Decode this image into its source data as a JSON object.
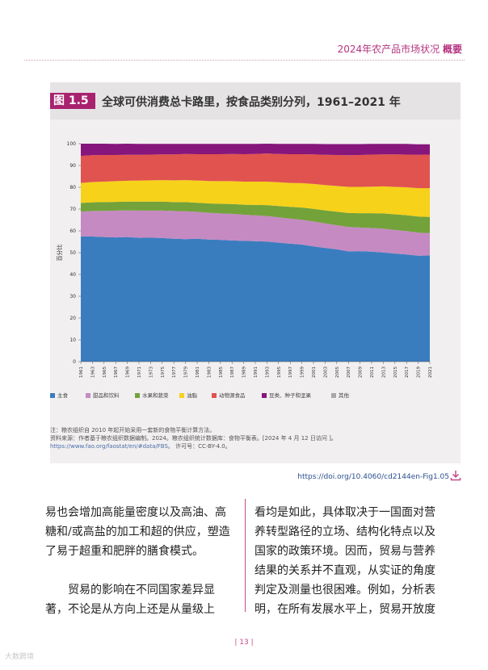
{
  "header": {
    "prefix": "2024年农产品市场状况",
    "bold": "概要"
  },
  "figure": {
    "tag": "图 1.5",
    "title": "全球可供消费总卡路里，按食品类别分列，1961–2021 年"
  },
  "chart_data": {
    "type": "area",
    "stacked": true,
    "ylabel": "百分比",
    "ylim": [
      0,
      100
    ],
    "yticks": [
      0,
      10,
      20,
      30,
      40,
      50,
      60,
      70,
      80,
      90,
      100
    ],
    "x": [
      "1961",
      "1963",
      "1965",
      "1967",
      "1969",
      "1971",
      "1973",
      "1975",
      "1977",
      "1979",
      "1981",
      "1983",
      "1985",
      "1987",
      "1989",
      "1991",
      "1993",
      "1995",
      "1997",
      "1999",
      "2001",
      "2003",
      "2005",
      "2007",
      "2009",
      "2011",
      "2013",
      "2015",
      "2017",
      "2019",
      "2021"
    ],
    "series": [
      {
        "name": "主食",
        "color": "#3a7dbf",
        "values": [
          57.5,
          57.4,
          57.2,
          57.0,
          57.2,
          56.8,
          56.9,
          56.7,
          56.4,
          56.2,
          56.4,
          56.0,
          55.9,
          55.6,
          55.4,
          55.3,
          55.1,
          54.6,
          54.1,
          53.7,
          52.9,
          52.2,
          51.5,
          50.6,
          50.7,
          50.5,
          50.1,
          49.6,
          49.2,
          48.6,
          48.7
        ]
      },
      {
        "name": "甜品和饮料",
        "color": "#c58ac2",
        "values": [
          11.3,
          11.7,
          12.0,
          12.3,
          12.2,
          12.5,
          12.4,
          12.6,
          12.7,
          12.8,
          12.3,
          12.3,
          12.1,
          12.2,
          12.0,
          11.8,
          11.7,
          11.6,
          11.5,
          11.4,
          11.4,
          11.2,
          11.1,
          11.2,
          10.8,
          10.8,
          10.9,
          10.8,
          10.7,
          10.6,
          10.3
        ]
      },
      {
        "name": "水果和蔬菜",
        "color": "#73a23a",
        "values": [
          4.0,
          4.0,
          4.0,
          4.0,
          4.0,
          4.1,
          4.1,
          4.1,
          4.1,
          4.2,
          4.2,
          4.3,
          4.4,
          4.5,
          4.6,
          4.8,
          5.0,
          5.2,
          5.4,
          5.6,
          5.8,
          6.0,
          6.2,
          6.4,
          6.6,
          6.8,
          7.0,
          7.2,
          7.3,
          7.4,
          7.4
        ]
      },
      {
        "name": "油脂",
        "color": "#f6d21b",
        "values": [
          9.2,
          9.3,
          9.4,
          9.5,
          9.6,
          9.7,
          9.8,
          9.9,
          10.0,
          10.1,
          10.2,
          10.3,
          10.4,
          10.5,
          10.6,
          10.7,
          10.8,
          10.9,
          11.0,
          11.2,
          11.4,
          11.6,
          11.8,
          12.0,
          12.1,
          12.2,
          12.4,
          12.6,
          12.8,
          13.0,
          13.2
        ]
      },
      {
        "name": "动物源食品",
        "color": "#e0534f",
        "values": [
          12.4,
          12.3,
          12.2,
          12.0,
          11.9,
          11.8,
          11.8,
          11.8,
          11.9,
          12.0,
          12.1,
          12.3,
          12.4,
          12.5,
          12.6,
          12.7,
          12.9,
          13.0,
          13.2,
          13.3,
          13.6,
          13.9,
          14.2,
          14.5,
          14.6,
          14.7,
          14.7,
          14.9,
          15.0,
          15.3,
          15.4
        ]
      },
      {
        "name": "豆类、种子和坚果",
        "color": "#86167b",
        "values": [
          5.6,
          5.3,
          5.2,
          5.1,
          5.1,
          5.0,
          4.9,
          4.8,
          4.8,
          4.6,
          4.7,
          4.7,
          4.7,
          4.6,
          4.7,
          4.6,
          4.5,
          4.6,
          4.7,
          4.7,
          4.8,
          4.9,
          5.0,
          5.1,
          5.0,
          4.9,
          4.8,
          4.8,
          4.9,
          4.8,
          4.7
        ]
      },
      {
        "name": "其他",
        "color": "#a8a8a8",
        "values": [
          0,
          0,
          0,
          0,
          0,
          0,
          0,
          0,
          0,
          0,
          0,
          0,
          0,
          0,
          0,
          0,
          0,
          0,
          0,
          0,
          0,
          0,
          0,
          0,
          0,
          0,
          0,
          0,
          0,
          0,
          0
        ]
      }
    ]
  },
  "notes": {
    "line1": "注：粮农组织自 2010 年起开始采用一套新的食物平衡计算方法。",
    "line2": "资料来源：作者基于粮农组织数据编制。2024。粮农组织统计数据库：食物平衡表。[2024 年 4 月 12 日访问 ]。",
    "line3_link": "https://www.fao.org/faostat/en/#data/FBS。",
    "line3_license": "许可号：CC-BY-4.0。"
  },
  "doi": "https://doi.org/10.4060/cd2144en-Fig1.05",
  "body": {
    "left": {
      "p1": "易也会增加高能量密度以及高油、高糖和/或高盐的加工和超的供应，塑造了易于超重和肥胖的膳食模式。",
      "p2": "贸易的影响在不同国家差异显著，不论是从方向上还是从量级上"
    },
    "right": "看均是如此，具体取决于一国面对营养转型路径的立场、结构化特点以及国家的政策环境。因而，贸易与营养结果的关系并不直观，从实证的角度判定及测量也很困难。例如，分析表明，在所有发展水平上，贸易开放度"
  },
  "page_number": "| 13 |",
  "watermark": "大数跨境"
}
